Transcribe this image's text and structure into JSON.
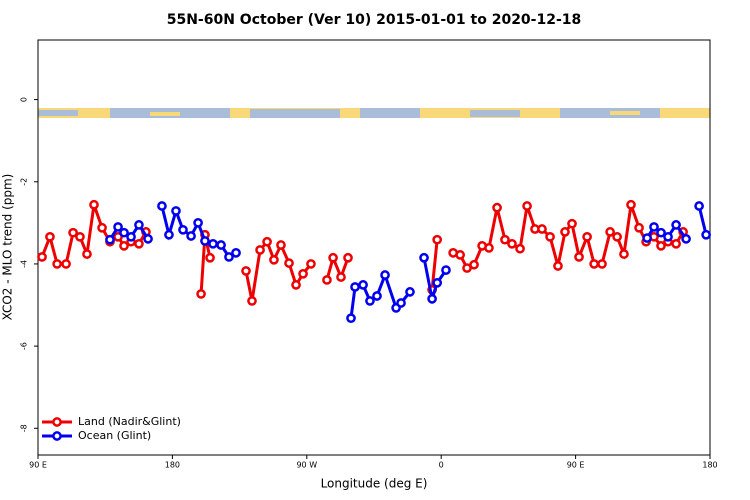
{
  "chart_data": {
    "type": "line",
    "title": "55N-60N October (Ver 10)   2015-01-01 to 2020-12-18",
    "x_label": "Longitude (deg E)",
    "y_label": "XCO2 - MLO trend (ppm)",
    "xlim": [
      90,
      540
    ],
    "ylim": [
      -8.65,
      1.45
    ],
    "xticks": [
      {
        "value": 90,
        "label": "90 E"
      },
      180,
      {
        "value": 270,
        "label": "90 W"
      },
      {
        "value": 360,
        "label": "0"
      },
      {
        "value": 450,
        "label": "90 E"
      },
      {
        "value": 540,
        "label": "180"
      }
    ],
    "yticks": [
      0,
      -2,
      -4,
      -6,
      -8
    ],
    "legend": "bottom-left",
    "series": [
      {
        "name": "Land (Nadir&Glint)",
        "color": "#ee0000",
        "x": [
          92.7,
          98.0,
          102.8,
          108.8,
          113.5,
          118.1,
          122.8,
          127.5,
          132.9,
          138.2,
          143.6,
          147.6,
          152.3,
          157.6,
          162.3,
          null,
          199.2,
          201.8,
          205.2,
          null,
          229.3,
          233.3,
          238.7,
          243.4,
          248.0,
          252.7,
          258.1,
          262.8,
          267.5,
          272.8,
          null,
          283.5,
          287.6,
          292.9,
          297.6,
          null,
          353.9,
          357.3,
          null,
          368.0,
          372.7,
          377.3,
          382.0,
          387.4,
          392.0,
          397.4,
          402.7,
          407.4,
          412.8,
          417.5,
          422.8,
          427.5,
          432.9,
          438.2,
          442.9,
          447.6,
          452.3,
          457.7,
          462.4,
          467.7,
          473.1,
          477.8,
          482.4,
          487.1,
          492.5,
          497.2,
          502.5,
          507.2,
          511.9,
          517.3,
          522.0
        ],
        "values": [
          -3.83,
          -3.34,
          -4.0,
          -4.0,
          -3.24,
          -3.34,
          -3.76,
          -2.56,
          -3.12,
          -3.46,
          -3.34,
          -3.56,
          -3.46,
          -3.51,
          -3.22,
          null,
          -4.73,
          -3.29,
          -3.85,
          null,
          -4.17,
          -4.9,
          -3.66,
          -3.46,
          -3.9,
          -3.54,
          -3.98,
          -4.51,
          -4.24,
          -4.0,
          null,
          -4.39,
          -3.85,
          -4.32,
          -3.85,
          null,
          -4.63,
          -3.41,
          null,
          -3.73,
          -3.78,
          -4.1,
          -4.02,
          -3.56,
          -3.61,
          -2.63,
          -3.41,
          -3.51,
          -3.63,
          -2.59,
          -3.15,
          -3.15,
          -3.34,
          -4.05,
          -3.22,
          -3.02,
          -3.83,
          -3.34,
          -4.0,
          -4.0,
          -3.22,
          -3.34,
          -3.76,
          -2.56,
          -3.12,
          -3.46,
          -3.34,
          -3.56,
          -3.46,
          -3.51,
          -3.22
        ]
      },
      {
        "name": "Ocean (Glint)",
        "color": "#0000ee",
        "x": [
          138.2,
          143.6,
          147.6,
          152.3,
          157.6,
          163.7,
          null,
          173.0,
          177.7,
          182.4,
          187.1,
          192.5,
          197.2,
          201.8,
          207.2,
          212.6,
          217.9,
          222.6,
          null,
          299.6,
          302.3,
          307.7,
          312.3,
          317.0,
          322.4,
          329.8,
          333.1,
          339.1,
          null,
          348.5,
          353.9,
          357.3,
          363.2,
          null,
          497.9,
          502.5,
          507.2,
          511.9,
          517.3,
          524.0,
          null,
          532.7,
          537.4
        ],
        "values": [
          -3.41,
          -3.1,
          -3.24,
          -3.34,
          -3.05,
          -3.39,
          null,
          -2.59,
          -3.29,
          -2.71,
          -3.17,
          -3.32,
          -3.0,
          -3.44,
          -3.51,
          -3.54,
          -3.83,
          -3.73,
          null,
          -5.32,
          -4.56,
          -4.51,
          -4.9,
          -4.78,
          -4.27,
          -5.07,
          -4.95,
          -4.68,
          null,
          -3.85,
          -4.85,
          -4.46,
          -4.15,
          null,
          -3.37,
          -3.1,
          -3.24,
          -3.34,
          -3.05,
          -3.39,
          null,
          -2.59,
          -3.29
        ]
      }
    ]
  }
}
